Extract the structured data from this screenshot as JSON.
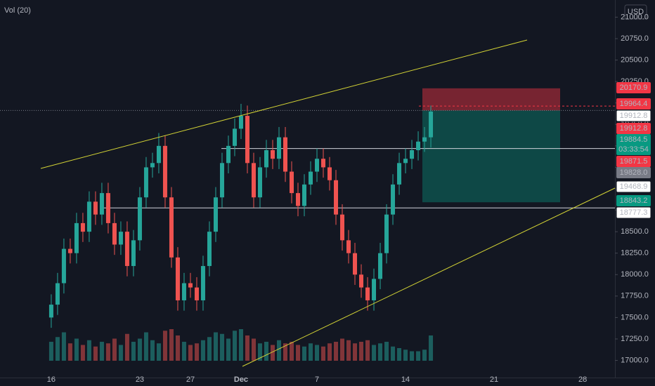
{
  "chart_data": {
    "type": "candlestick",
    "indicator_label": "Vol (20)",
    "currency": "USD",
    "up_color": "#26a69a",
    "down_color": "#ef5350",
    "x": [
      8,
      9,
      10,
      11,
      12,
      13,
      14,
      15,
      16,
      17,
      18,
      19,
      20,
      21,
      22,
      23,
      24,
      25,
      26,
      27,
      28,
      29,
      30,
      31,
      32,
      33,
      34,
      35,
      36,
      37,
      38,
      39,
      40,
      41,
      42,
      43,
      44,
      45,
      46,
      47,
      48,
      49,
      50,
      51,
      52,
      53,
      54,
      55,
      56,
      57,
      58,
      59,
      60,
      61,
      62,
      63,
      64,
      65,
      66,
      67,
      68
    ],
    "open": [
      17500,
      17650,
      17900,
      18300,
      18250,
      18600,
      18500,
      18850,
      18700,
      18950,
      18600,
      18350,
      18500,
      18100,
      18400,
      18900,
      19250,
      19300,
      19500,
      18900,
      18200,
      17700,
      17900,
      17850,
      17700,
      18100,
      18500,
      18900,
      19300,
      19500,
      19700,
      19850,
      19300,
      18900,
      19250,
      19450,
      19350,
      19600,
      19200,
      18950,
      18800,
      19050,
      19200,
      19350,
      19250,
      19100,
      18700,
      18400,
      18250,
      18000,
      17850,
      17700,
      17950,
      18250,
      18700,
      19050,
      19300,
      19350,
      19450,
      19550,
      19600
    ],
    "high": [
      17770,
      18020,
      18420,
      18420,
      18720,
      18720,
      18970,
      18970,
      19070,
      19070,
      18720,
      18620,
      18620,
      18520,
      19020,
      19370,
      19420,
      19650,
      19620,
      19020,
      18320,
      18020,
      18020,
      17970,
      18220,
      18620,
      19020,
      19420,
      19620,
      19820,
      19990,
      19970,
      19420,
      19370,
      19570,
      19570,
      19720,
      19720,
      19320,
      19070,
      19170,
      19320,
      19470,
      19470,
      19370,
      19220,
      18820,
      18520,
      18370,
      18120,
      17970,
      18070,
      18370,
      18820,
      19170,
      19420,
      19470,
      19570,
      19670,
      19720,
      19970
    ],
    "low": [
      17380,
      17530,
      17780,
      18130,
      18130,
      18380,
      18380,
      18580,
      18580,
      18480,
      18230,
      18230,
      17980,
      17980,
      18280,
      18780,
      19130,
      19180,
      18780,
      18080,
      17580,
      17580,
      17730,
      17580,
      17580,
      17980,
      18380,
      18780,
      19180,
      19380,
      19580,
      19180,
      18780,
      18780,
      19130,
      19230,
      19230,
      19080,
      18830,
      18680,
      18680,
      18930,
      19080,
      19130,
      18980,
      18580,
      18280,
      18130,
      17880,
      17730,
      17580,
      17580,
      17830,
      18130,
      18580,
      18930,
      19180,
      19230,
      19330,
      19430,
      19480
    ],
    "close": [
      17650,
      17900,
      18300,
      18250,
      18600,
      18500,
      18850,
      18700,
      18950,
      18600,
      18350,
      18500,
      18100,
      18400,
      18900,
      19250,
      19300,
      19500,
      18900,
      18200,
      17700,
      17900,
      17850,
      17700,
      18100,
      18500,
      18900,
      19300,
      19500,
      19700,
      19850,
      19300,
      18900,
      19250,
      19450,
      19350,
      19600,
      19200,
      18950,
      18800,
      19050,
      19200,
      19350,
      19250,
      19100,
      18700,
      18400,
      18250,
      18000,
      17850,
      17700,
      17950,
      18250,
      18700,
      19050,
      19300,
      19350,
      19450,
      19550,
      19600,
      19900
    ],
    "volume": [
      60,
      75,
      90,
      55,
      70,
      50,
      65,
      45,
      60,
      55,
      70,
      50,
      85,
      60,
      70,
      90,
      65,
      55,
      95,
      100,
      80,
      60,
      50,
      55,
      65,
      75,
      90,
      85,
      70,
      95,
      100,
      80,
      70,
      55,
      60,
      50,
      65,
      55,
      60,
      50,
      45,
      55,
      50,
      45,
      55,
      60,
      70,
      65,
      55,
      60,
      65,
      50,
      55,
      60,
      45,
      40,
      35,
      30,
      30,
      35,
      80
    ],
    "xlim": [
      -0.1,
      97.1
    ],
    "xticks": [
      {
        "value": 8,
        "label": "16"
      },
      {
        "value": 22,
        "label": "23"
      },
      {
        "value": 30,
        "label": "27"
      },
      {
        "value": 38,
        "label": "Dec"
      },
      {
        "value": 50,
        "label": "7"
      },
      {
        "value": 64,
        "label": "14"
      },
      {
        "value": 78,
        "label": "21"
      },
      {
        "value": 92,
        "label": "28"
      }
    ],
    "ylim": [
      16800,
      21200
    ],
    "yticks": [
      {
        "value": 17000,
        "label": "17000.0"
      },
      {
        "value": 17250,
        "label": "17250.0"
      },
      {
        "value": 17500,
        "label": "17500.0"
      },
      {
        "value": 17750,
        "label": "17750.0"
      },
      {
        "value": 18000,
        "label": "18000.0"
      },
      {
        "value": 18250,
        "label": "18250.0"
      },
      {
        "value": 18500,
        "label": "18500.0"
      },
      {
        "value": 18750,
        "label": "18750.0"
      },
      {
        "value": 19000,
        "label": "19000.0"
      },
      {
        "value": 19250,
        "label": "19250.0"
      },
      {
        "value": 19500,
        "label": "19500.0"
      },
      {
        "value": 19750,
        "label": "19750.0"
      },
      {
        "value": 20000,
        "label": "20000.0"
      },
      {
        "value": 20250,
        "label": "20250.0"
      },
      {
        "value": 20500,
        "label": "20500.0"
      },
      {
        "value": 20750,
        "label": "20750.0"
      },
      {
        "value": 21000,
        "label": "21000.0"
      }
    ],
    "position": {
      "stop": 20170.9,
      "entry": 19912.8,
      "target": 18843.2
    },
    "hlines": [
      19468.9,
      18777.3
    ],
    "dashed_lines": [
      19964.4,
      19912.8
    ],
    "axis_labels": [
      {
        "text": "20170.9",
        "background": "#f23645"
      },
      {
        "text": "19964.4",
        "background": "#f23645"
      },
      {
        "text": "19912.8",
        "background": "#ffffff"
      },
      {
        "text": "19912.8",
        "background": "#f23645"
      },
      {
        "text": "19884.5",
        "background": "#089981"
      },
      {
        "text": "03:33:54",
        "background": "#089981"
      },
      {
        "text": "19871.5",
        "background": "#f23645"
      },
      {
        "text": "19828.0",
        "background": "#787b86"
      },
      {
        "text": "19468.9",
        "background": "#ffffff"
      },
      {
        "text": "18843.2",
        "background": "#089981"
      },
      {
        "text": "18777.3",
        "background": "#ffffff"
      }
    ]
  }
}
